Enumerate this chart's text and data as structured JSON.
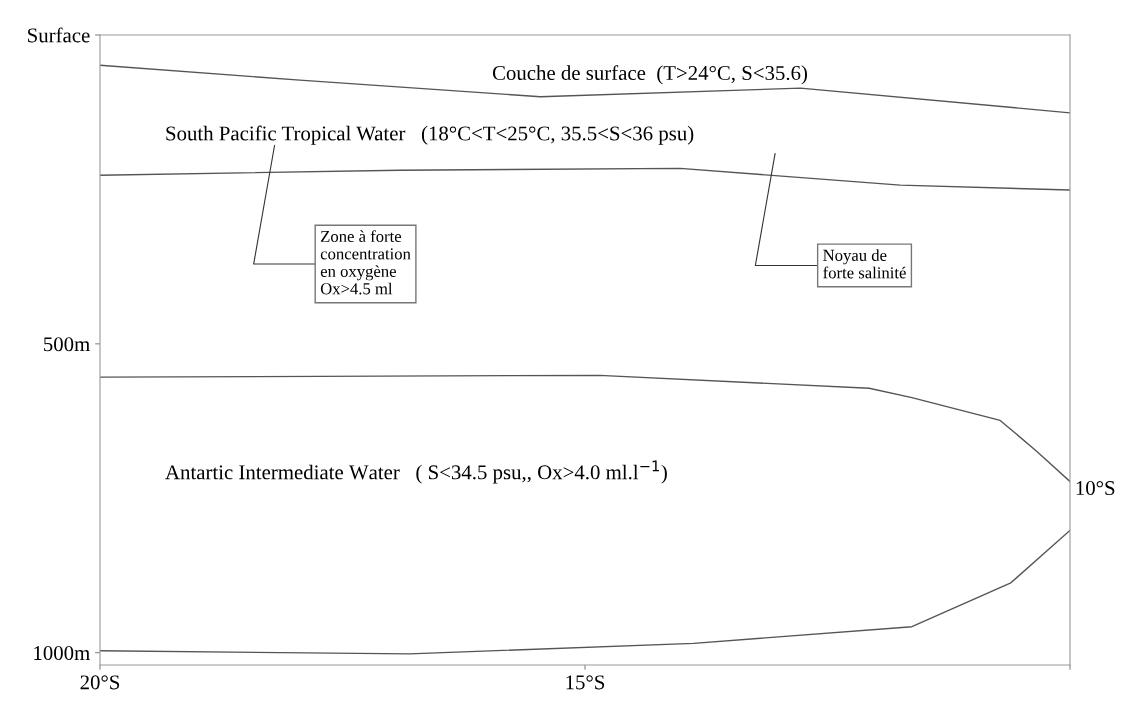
{
  "chart_data": {
    "type": "line",
    "series": [
      {
        "color": "#555555",
        "x": [
          -20,
          -17.94,
          -15.46,
          -12.78,
          -10
        ],
        "values": [
          49,
          73,
          100,
          86,
          126
        ]
      },
      {
        "color": "#555555",
        "x": [
          -20,
          -16.91,
          -14.02,
          -11.75,
          -10
        ],
        "values": [
          227,
          219,
          216,
          243,
          251
        ]
      },
      {
        "color": "#555555",
        "x": [
          -20,
          -14.85,
          -12.07,
          -11.63,
          -10.72,
          -10.35,
          -10
        ],
        "values": [
          554,
          551,
          572,
          587,
          624,
          673,
          723
        ]
      },
      {
        "color": "#555555",
        "x": [
          -20,
          -16.81,
          -13.88,
          -11.63,
          -10.61,
          -10
        ],
        "values": [
          997,
          1002,
          985,
          958,
          887,
          802
        ]
      }
    ],
    "xlim": [
      -20,
      -10
    ],
    "xticks": [
      {
        "value": -20,
        "label": "20°S"
      },
      {
        "value": -15,
        "label": "15°S"
      },
      {
        "value": -10,
        "label": null
      }
    ],
    "ylim": [
      1020,
      0
    ],
    "yticks": [
      {
        "value": 0,
        "label": "Surface"
      },
      {
        "value": 500,
        "label": "500m"
      },
      {
        "value": 1000,
        "label": "1000m"
      }
    ],
    "grid": false,
    "legend": false,
    "marker": "none",
    "line_style": "solid",
    "annotations": [
      "Couche de surface  (T>24°C, S<35.6)",
      "South Pacific Tropical Water   (18°C<T<25°C, 35.5<S<36 psu)",
      "Zone à forte\nconcentration\nen oxygène\nOx>4.5 ml",
      "Noyau de\nforte salinité",
      "Antartic Intermediate Water   ( S<34.5 psu,, Ox>4.0 ml.l$^{−1}$)",
      "10°S"
    ]
  }
}
